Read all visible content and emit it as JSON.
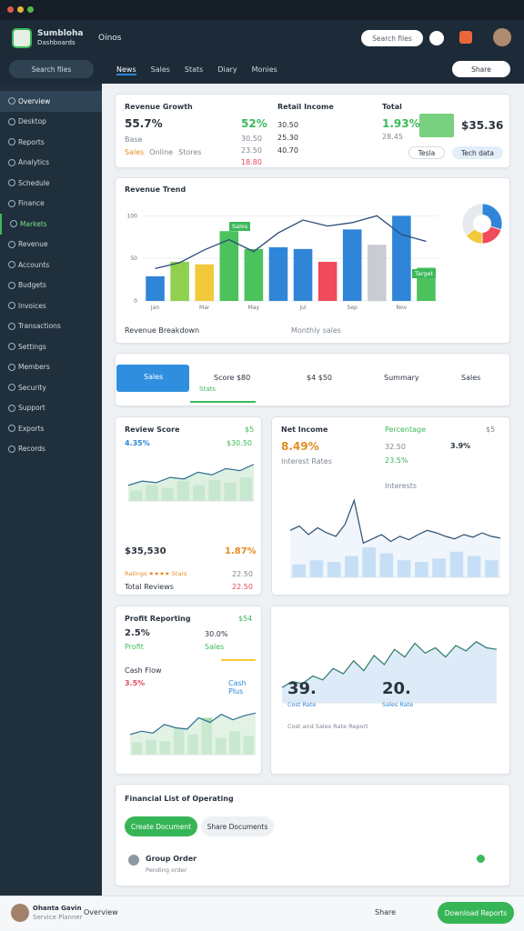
{
  "header": {
    "app_name": "Sumbloha",
    "app_subtitle": "Dashboards",
    "section": "Oinos",
    "search": "Search files"
  },
  "tabs": [
    "News",
    "Sales",
    "Stats",
    "Diary",
    "Monies"
  ],
  "share": "Share",
  "sidebar": {
    "search": "Search files",
    "items": [
      "Overview",
      "Desktop",
      "Reports",
      "Analytics",
      "Schedule",
      "Finance",
      "Markets",
      "Revenue",
      "Accounts",
      "Budgets",
      "Invoices",
      "Transactions",
      "Settings",
      "Members",
      "Security",
      "Support",
      "Exports",
      "Records"
    ]
  },
  "kpi": {
    "title": "Revenue Growth",
    "value": "55.7%",
    "sub": "Base",
    "tags": [
      "Sales",
      "Online",
      "Stores"
    ],
    "col2": {
      "value": "52%",
      "rows": [
        "30.50",
        "23.50",
        "18.80"
      ]
    },
    "col3": {
      "title": "Retail Income",
      "rows": [
        "30.50",
        "25.30",
        "40.70"
      ]
    },
    "col4": {
      "title": "Total",
      "value": "1.93%",
      "sub": "28.45"
    },
    "col5": {
      "value": "$35.36",
      "buttons": [
        "Tesla",
        "Tech data"
      ]
    }
  },
  "main_card": {
    "title": "Revenue Trend",
    "footer": "Revenue Breakdown",
    "footer_right": "Monthly sales",
    "badge": "Sales",
    "badge2": "Target"
  },
  "strip": {
    "active": "Sales",
    "active_sub": "Stats",
    "items": [
      "Score $80",
      "$4 $50",
      "Summary",
      "Sales"
    ]
  },
  "review": {
    "title": "Review Score",
    "tag": "$5",
    "value": "4.35%",
    "right": "$30.50",
    "money": "$35,530",
    "rate": "1.87%",
    "stars": "Ratings ★★★★ Stars",
    "rate2": "22.50",
    "label": "Total Reviews",
    "rate3": "22.50"
  },
  "income": {
    "title": "Net Income",
    "tag": "Percentage",
    "corner": "$5",
    "value": "8.49%",
    "small": "32.50",
    "small2": "3.9%",
    "label": "Interest Rates",
    "pct": "23.5%",
    "label2": "Interests"
  },
  "profit": {
    "title": "Profit Reporting",
    "tag": "$54",
    "value": "2.5%",
    "value2": "30.0%",
    "label": "Profit",
    "label2": "Sales",
    "title2": "Cash Flow",
    "value3": "3.5%",
    "tag2": "Cash Plus"
  },
  "cost": {
    "big1": "39.",
    "big2": "20.",
    "label1": "Cost Rate",
    "label2": "Sales Rate",
    "note": "Cost and Sales Rate Report"
  },
  "docs": {
    "title": "Financial List of Operating",
    "btn1": "Create Document",
    "btn2": "Share Documents",
    "order": "Group Order",
    "order_sub": "Pending order"
  },
  "footer": {
    "name": "Ohanta Gavin",
    "role": "Service Planner",
    "link": "Overview",
    "share": "Share",
    "button": "Download Reports"
  },
  "chart_data": [
    {
      "type": "bar",
      "categories": [
        "Jan",
        null,
        "Mar",
        null,
        "May",
        null,
        "Jul",
        null,
        "Sep",
        null,
        "Nov",
        null
      ],
      "values": [
        29,
        46,
        43,
        82,
        61,
        63,
        61,
        46,
        84,
        66,
        100,
        39
      ],
      "colors": [
        "#2f86d8",
        "#8fd14f",
        "#f2c93a",
        "#4cc25c",
        "#4cc25c",
        "#2f86d8",
        "#2f86d8",
        "#ef4b5c",
        "#2f86d8",
        "#c9ccd2",
        "#2f86d8",
        "#4cc25c"
      ],
      "line": {
        "color": "#2b4a7a",
        "values": [
          38,
          45,
          60,
          72,
          58,
          80,
          95,
          88,
          92,
          100,
          78,
          70
        ]
      },
      "ylim": [
        0,
        110
      ],
      "yticks": [
        0,
        50,
        100
      ],
      "grid": true
    },
    {
      "type": "pie",
      "values": [
        30,
        20,
        15,
        35
      ],
      "colors": [
        "#2f86d8",
        "#ef4b5c",
        "#f2c93a",
        "#e6e9ee"
      ]
    },
    {
      "type": "area",
      "values": [
        30,
        38,
        35,
        45,
        42,
        55,
        50,
        62,
        58,
        70
      ],
      "bar_values": [
        20,
        30,
        25,
        38,
        30,
        40,
        35,
        45
      ],
      "color": "#2d6e8e",
      "fill": "#cfe9d4",
      "bar_color": "#b5dfbf",
      "ylim": [
        0,
        80
      ]
    },
    {
      "type": "area",
      "values": [
        55,
        60,
        50,
        58,
        52,
        48,
        62,
        90,
        40,
        45,
        50,
        42,
        48,
        44,
        50,
        55,
        52,
        48,
        45,
        50,
        47,
        52,
        48,
        46
      ],
      "bar_values": [
        15,
        20,
        18,
        25,
        35,
        28,
        20,
        18,
        22,
        30,
        25,
        20
      ],
      "color": "#2d4f6e",
      "fill": "#eaf2fb",
      "bar_color": "#74b3ea",
      "ylim": [
        0,
        100
      ]
    },
    {
      "type": "area",
      "values": [
        30,
        35,
        32,
        45,
        40,
        38,
        55,
        48,
        60,
        52,
        58,
        62
      ],
      "bar_values": [
        18,
        22,
        20,
        40,
        30,
        55,
        25,
        35,
        28
      ],
      "color": "#2d6e8e",
      "fill": "#d6eedb",
      "bar_color": "#a9dbb4",
      "ylim": [
        0,
        80
      ]
    },
    {
      "type": "area",
      "values": [
        20,
        28,
        25,
        35,
        30,
        45,
        38,
        55,
        42,
        62,
        50,
        70,
        60,
        78,
        65,
        72,
        60,
        75,
        68,
        80,
        72,
        70
      ],
      "color": "#2d7a6a",
      "fill": "#cfe3f6",
      "ylim": [
        0,
        100
      ]
    }
  ]
}
